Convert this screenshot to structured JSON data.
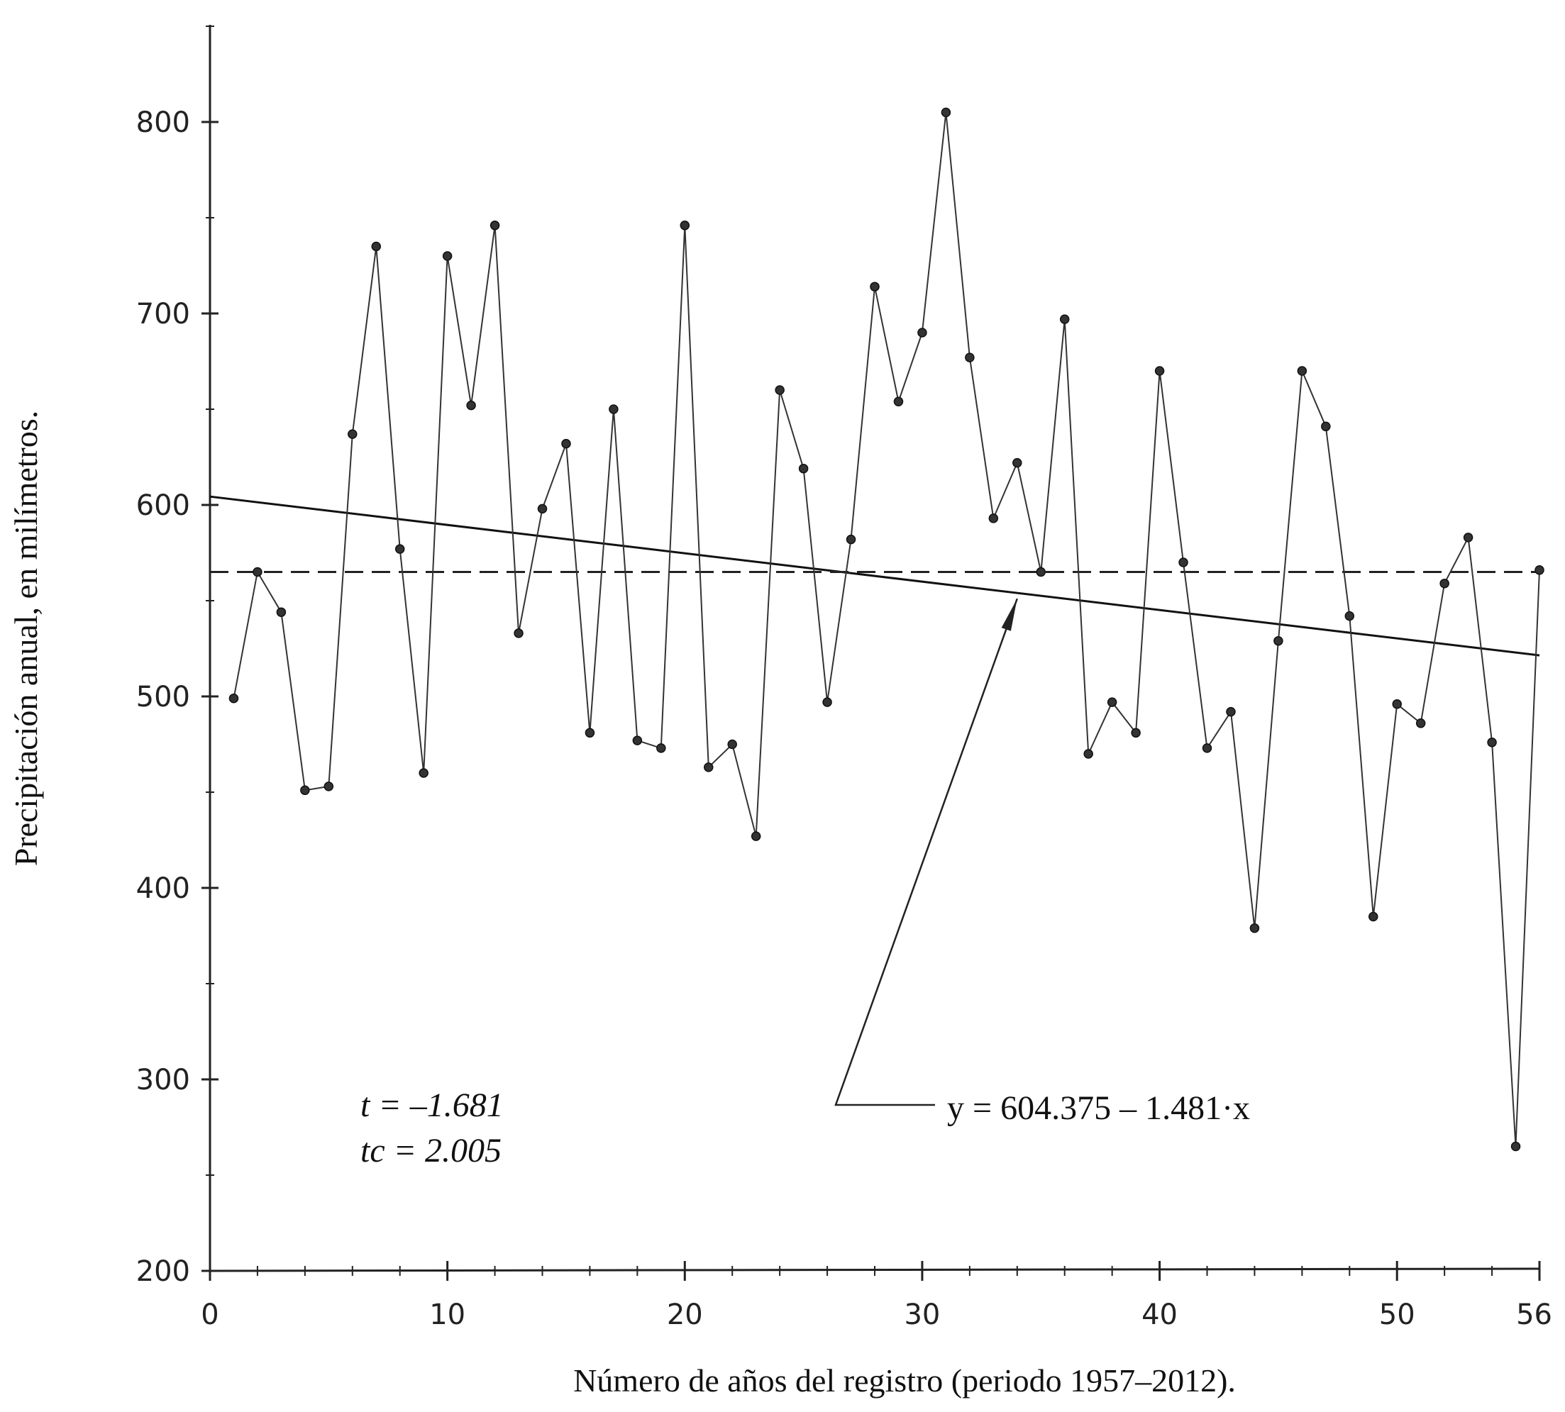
{
  "chart_data": {
    "type": "line",
    "xlabel": "Número de años del registro (periodo 1957–2012).",
    "ylabel": "Precipitación anual, en milímetros.",
    "xlim": [
      0,
      56
    ],
    "ylim": [
      200,
      850
    ],
    "x_ticks": [
      0,
      10,
      20,
      30,
      40,
      50,
      56
    ],
    "x_tick_labels": [
      "0",
      "10",
      "20",
      "30",
      "40",
      "50",
      "56"
    ],
    "y_ticks": [
      200,
      300,
      400,
      500,
      600,
      700,
      800
    ],
    "y_tick_labels": [
      "200",
      "300",
      "400",
      "500",
      "600",
      "700",
      "800"
    ],
    "grid": false,
    "series": [
      {
        "x": [
          1,
          2,
          3,
          4,
          5,
          6,
          7,
          8,
          9,
          10,
          11,
          12,
          13,
          14,
          15,
          16,
          17,
          18,
          19,
          20,
          21,
          22,
          23,
          24,
          25,
          26,
          27,
          28,
          29,
          30,
          31,
          32,
          33,
          34,
          35,
          36,
          37,
          38,
          39,
          40,
          41,
          42,
          43,
          44,
          45,
          46,
          47,
          48,
          49,
          50,
          51,
          52,
          53,
          54,
          55,
          56
        ],
        "values": [
          499,
          565,
          544,
          451,
          453,
          637,
          735,
          577,
          460,
          730,
          652,
          746,
          533,
          598,
          632,
          481,
          650,
          477,
          473,
          746,
          463,
          475,
          427,
          660,
          619,
          497,
          582,
          714,
          654,
          690,
          805,
          677,
          593,
          622,
          565,
          697,
          470,
          497,
          481,
          670,
          570,
          473,
          492,
          379,
          529,
          670,
          641,
          542,
          385,
          496,
          486,
          559,
          583,
          476,
          265,
          566
        ],
        "color": "#333333"
      }
    ],
    "reference_lines": [
      {
        "type": "trend",
        "style": "solid",
        "intercept": 604.375,
        "slope": -1.481,
        "x_range": [
          0,
          56
        ]
      },
      {
        "type": "mean",
        "style": "dashed",
        "value": 565,
        "x_range": [
          0,
          56
        ]
      }
    ],
    "annotations": {
      "t_stat": "t = –1.681",
      "tc_stat": "tc = 2.005",
      "equation": "y = 604.375 – 1.481·x"
    }
  }
}
